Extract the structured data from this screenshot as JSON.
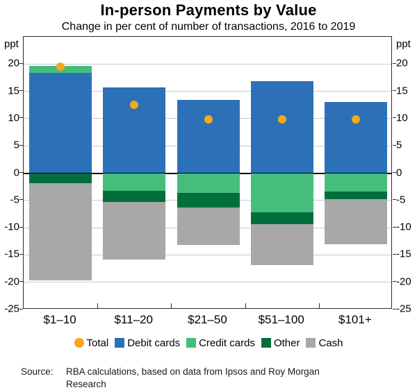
{
  "title": "In-person Payments by Value",
  "subtitle": "Change in per cent of number of transactions, 2016 to 2019",
  "axis": {
    "unit_label_left": "ppt",
    "unit_label_right": "ppt",
    "y_ticks": [
      20,
      15,
      10,
      5,
      0,
      -5,
      -10,
      -15,
      -20,
      -25
    ],
    "ylim": [
      -25,
      25
    ],
    "grid": true
  },
  "chart_data": {
    "type": "bar",
    "stacked": true,
    "categories": [
      "$1–10",
      "$11–20",
      "$21–50",
      "$51–100",
      "$101+"
    ],
    "series": [
      {
        "name": "Debit cards",
        "color": "#2C70B8",
        "values": [
          18.4,
          15.7,
          13.4,
          16.9,
          13.1
        ]
      },
      {
        "name": "Credit cards",
        "color": "#45BE7B",
        "values": [
          1.2,
          -3.3,
          -3.6,
          -7.2,
          -3.4
        ]
      },
      {
        "name": "Other",
        "color": "#006F3C",
        "values": [
          -1.9,
          -2.0,
          -2.7,
          -2.1,
          -1.4
        ]
      },
      {
        "name": "Cash",
        "color": "#A8A8A8",
        "values": [
          -17.8,
          -10.6,
          -6.9,
          -7.5,
          -8.3
        ]
      }
    ],
    "marker_series": {
      "name": "Total",
      "color": "#F7A81C",
      "values": [
        19.5,
        12.5,
        9.8,
        9.8,
        9.8
      ]
    },
    "title": "In-person Payments by Value",
    "xlabel": "",
    "ylabel": "ppt",
    "legend_position": "bottom"
  },
  "legend": [
    {
      "label": "Total",
      "color": "#F7A81C",
      "shape": "circle"
    },
    {
      "label": "Debit cards",
      "color": "#2C70B8",
      "shape": "square"
    },
    {
      "label": "Credit cards",
      "color": "#45BE7B",
      "shape": "square"
    },
    {
      "label": "Other",
      "color": "#006F3C",
      "shape": "square"
    },
    {
      "label": "Cash",
      "color": "#A8A8A8",
      "shape": "square"
    }
  ],
  "source": {
    "label": "Source:",
    "line1": "RBA calculations, based on data from Ipsos and Roy Morgan",
    "line2": "Research"
  }
}
